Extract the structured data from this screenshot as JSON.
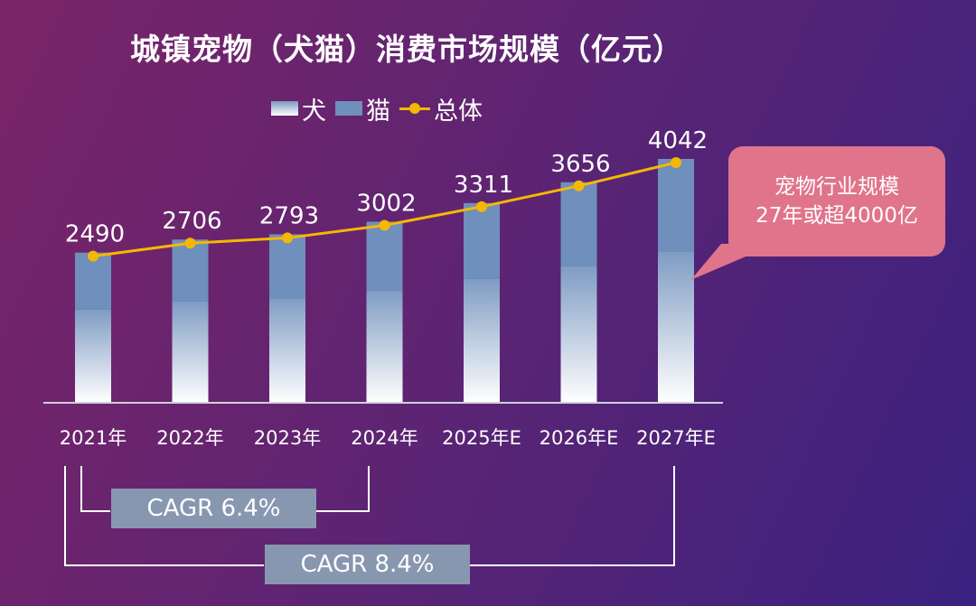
{
  "chart_data": {
    "type": "bar",
    "title": "城镇宠物（犬猫）消费市场规模（亿元）",
    "categories": [
      "2021年",
      "2022年",
      "2023年",
      "2024年",
      "2025年E",
      "2026年E",
      "2027年E"
    ],
    "series": [
      {
        "name": "犬",
        "kind": "bar-bottom"
      },
      {
        "name": "猫",
        "kind": "bar-top"
      },
      {
        "name": "总体",
        "kind": "line",
        "values": [
          2490,
          2706,
          2793,
          3002,
          3311,
          3656,
          4042
        ]
      }
    ],
    "ylim": [
      0,
      4400
    ],
    "grid": false,
    "legend_position": "top-center",
    "colors": {
      "dog": "#ffffff",
      "cat": "#6f8fbd",
      "total": "#f5b800"
    }
  },
  "callout": {
    "line1": "宠物行业规模",
    "line2": "27年或超4000亿"
  },
  "cagr": [
    {
      "label": "CAGR 6.4%"
    },
    {
      "label": "CAGR 8.4%"
    }
  ]
}
